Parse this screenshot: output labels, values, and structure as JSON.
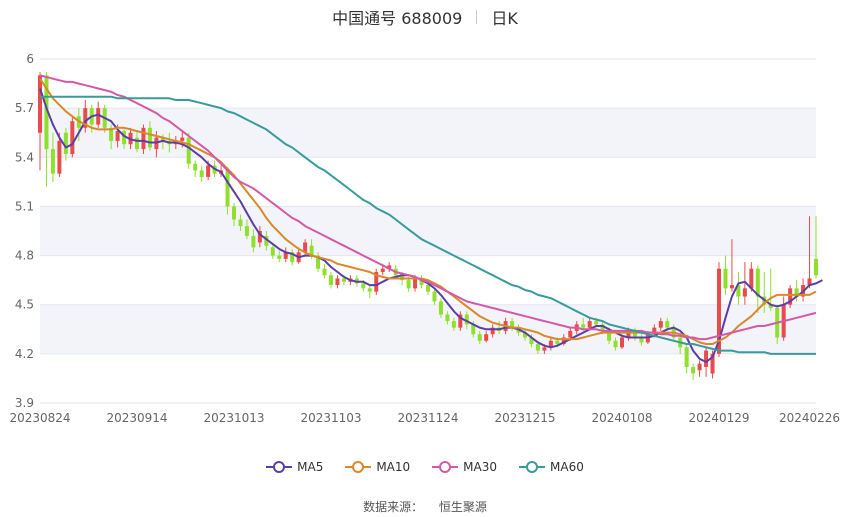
{
  "header": {
    "title": "中国通号 688009",
    "period": "日K"
  },
  "source": {
    "label": "数据来源：",
    "name": "恒生聚源"
  },
  "colors": {
    "up": "#e84b4b",
    "down": "#8ee02c",
    "MA5": "#5b3ea6",
    "MA10": "#d9882b",
    "MA30": "#d35aa6",
    "MA60": "#3a9b9b",
    "band": "#f2f4fa",
    "grid": "#e4e6ee",
    "axis_text": "#666666"
  },
  "chart_data": {
    "type": "candlestick",
    "ylim": [
      3.9,
      6.0
    ],
    "y_ticks": [
      "6",
      "5.7",
      "5.4",
      "5.1",
      "4.8",
      "4.5",
      "4.2",
      "3.9"
    ],
    "x_tick_labels": [
      "20230824",
      "20230914",
      "20231013",
      "20231103",
      "20231124",
      "20231215",
      "20240108",
      "20240129",
      "20240226"
    ],
    "x_tick_index": [
      0,
      15,
      30,
      45,
      60,
      75,
      90,
      105,
      119
    ],
    "candles": [
      [
        5.55,
        5.9,
        5.92,
        5.32
      ],
      [
        5.9,
        5.45,
        5.92,
        5.22
      ],
      [
        5.45,
        5.3,
        5.55,
        5.25
      ],
      [
        5.3,
        5.5,
        5.55,
        5.28
      ],
      [
        5.55,
        5.42,
        5.58,
        5.38
      ],
      [
        5.42,
        5.62,
        5.65,
        5.4
      ],
      [
        5.65,
        5.58,
        5.7,
        5.5
      ],
      [
        5.58,
        5.7,
        5.75,
        5.55
      ],
      [
        5.7,
        5.6,
        5.72,
        5.55
      ],
      [
        5.6,
        5.7,
        5.74,
        5.58
      ],
      [
        5.7,
        5.58,
        5.72,
        5.55
      ],
      [
        5.58,
        5.5,
        5.6,
        5.45
      ],
      [
        5.5,
        5.56,
        5.6,
        5.46
      ],
      [
        5.56,
        5.48,
        5.58,
        5.45
      ],
      [
        5.48,
        5.55,
        5.58,
        5.45
      ],
      [
        5.52,
        5.45,
        5.56,
        5.43
      ],
      [
        5.45,
        5.58,
        5.6,
        5.42
      ],
      [
        5.58,
        5.46,
        5.62,
        5.44
      ],
      [
        5.45,
        5.52,
        5.56,
        5.4
      ],
      [
        5.52,
        5.5,
        5.54,
        5.45
      ],
      [
        5.5,
        5.48,
        5.55,
        5.43
      ],
      [
        5.48,
        5.5,
        5.53,
        5.45
      ],
      [
        5.5,
        5.52,
        5.56,
        5.46
      ],
      [
        5.52,
        5.36,
        5.55,
        5.33
      ],
      [
        5.36,
        5.32,
        5.38,
        5.28
      ],
      [
        5.32,
        5.28,
        5.35,
        5.25
      ],
      [
        5.28,
        5.35,
        5.38,
        5.26
      ],
      [
        5.35,
        5.3,
        5.38,
        5.28
      ],
      [
        5.3,
        5.32,
        5.35,
        5.28
      ],
      [
        5.32,
        5.1,
        5.34,
        5.05
      ],
      [
        5.1,
        5.02,
        5.12,
        4.98
      ],
      [
        5.02,
        4.98,
        5.05,
        4.95
      ],
      [
        4.98,
        4.92,
        5.02,
        4.9
      ],
      [
        4.92,
        4.85,
        4.96,
        4.82
      ],
      [
        4.88,
        4.95,
        4.98,
        4.85
      ],
      [
        4.92,
        4.86,
        4.95,
        4.83
      ],
      [
        4.85,
        4.8,
        4.87,
        4.78
      ],
      [
        4.8,
        4.78,
        4.83,
        4.76
      ],
      [
        4.78,
        4.82,
        4.85,
        4.76
      ],
      [
        4.82,
        4.76,
        4.84,
        4.74
      ],
      [
        4.76,
        4.82,
        4.85,
        4.75
      ],
      [
        4.82,
        4.88,
        4.9,
        4.8
      ],
      [
        4.86,
        4.8,
        4.9,
        4.78
      ],
      [
        4.8,
        4.72,
        4.82,
        4.7
      ],
      [
        4.72,
        4.68,
        4.75,
        4.66
      ],
      [
        4.68,
        4.62,
        4.7,
        4.6
      ],
      [
        4.62,
        4.66,
        4.68,
        4.6
      ],
      [
        4.66,
        4.64,
        4.68,
        4.62
      ],
      [
        4.64,
        4.66,
        4.68,
        4.62
      ],
      [
        4.66,
        4.63,
        4.68,
        4.61
      ],
      [
        4.63,
        4.6,
        4.65,
        4.58
      ],
      [
        4.6,
        4.58,
        4.62,
        4.54
      ],
      [
        4.58,
        4.7,
        4.72,
        4.56
      ],
      [
        4.7,
        4.72,
        4.75,
        4.68
      ],
      [
        4.72,
        4.74,
        4.76,
        4.7
      ],
      [
        4.72,
        4.68,
        4.74,
        4.66
      ],
      [
        4.68,
        4.65,
        4.7,
        4.62
      ],
      [
        4.65,
        4.6,
        4.67,
        4.58
      ],
      [
        4.6,
        4.66,
        4.68,
        4.58
      ],
      [
        4.66,
        4.62,
        4.68,
        4.6
      ],
      [
        4.62,
        4.58,
        4.64,
        4.56
      ],
      [
        4.58,
        4.52,
        4.6,
        4.5
      ],
      [
        4.52,
        4.44,
        4.54,
        4.42
      ],
      [
        4.44,
        4.4,
        4.46,
        4.38
      ],
      [
        4.4,
        4.36,
        4.42,
        4.34
      ],
      [
        4.36,
        4.44,
        4.46,
        4.34
      ],
      [
        4.44,
        4.38,
        4.46,
        4.35
      ],
      [
        4.38,
        4.32,
        4.4,
        4.3
      ],
      [
        4.32,
        4.28,
        4.34,
        4.26
      ],
      [
        4.28,
        4.32,
        4.34,
        4.27
      ],
      [
        4.32,
        4.36,
        4.38,
        4.3
      ],
      [
        4.36,
        4.34,
        4.4,
        4.32
      ],
      [
        4.34,
        4.4,
        4.42,
        4.32
      ],
      [
        4.4,
        4.36,
        4.42,
        4.34
      ],
      [
        4.36,
        4.33,
        4.38,
        4.31
      ],
      [
        4.33,
        4.3,
        4.35,
        4.28
      ],
      [
        4.3,
        4.26,
        4.32,
        4.24
      ],
      [
        4.26,
        4.22,
        4.28,
        4.2
      ],
      [
        4.22,
        4.24,
        4.26,
        4.2
      ],
      [
        4.24,
        4.28,
        4.3,
        4.22
      ],
      [
        4.28,
        4.26,
        4.3,
        4.24
      ],
      [
        4.26,
        4.3,
        4.32,
        4.25
      ],
      [
        4.3,
        4.34,
        4.36,
        4.28
      ],
      [
        4.34,
        4.38,
        4.4,
        4.32
      ],
      [
        4.38,
        4.36,
        4.42,
        4.34
      ],
      [
        4.36,
        4.4,
        4.42,
        4.35
      ],
      [
        4.4,
        4.38,
        4.42,
        4.36
      ],
      [
        4.38,
        4.34,
        4.4,
        4.32
      ],
      [
        4.34,
        4.28,
        4.36,
        4.26
      ],
      [
        4.28,
        4.24,
        4.3,
        4.22
      ],
      [
        4.24,
        4.3,
        4.32,
        4.23
      ],
      [
        4.3,
        4.34,
        4.36,
        4.28
      ],
      [
        4.34,
        4.3,
        4.36,
        4.28
      ],
      [
        4.3,
        4.27,
        4.32,
        4.25
      ],
      [
        4.27,
        4.32,
        4.34,
        4.26
      ],
      [
        4.32,
        4.36,
        4.38,
        4.3
      ],
      [
        4.36,
        4.4,
        4.42,
        4.34
      ],
      [
        4.4,
        4.36,
        4.42,
        4.34
      ],
      [
        4.36,
        4.3,
        4.38,
        4.28
      ],
      [
        4.3,
        4.24,
        4.32,
        4.2
      ],
      [
        4.24,
        4.12,
        4.26,
        4.08
      ],
      [
        4.12,
        4.08,
        4.14,
        4.04
      ],
      [
        4.1,
        4.14,
        4.16,
        4.06
      ],
      [
        4.12,
        4.22,
        4.24,
        4.06
      ],
      [
        4.08,
        4.2,
        4.22,
        4.05
      ],
      [
        4.2,
        4.72,
        4.76,
        4.18
      ],
      [
        4.72,
        4.6,
        4.8,
        4.56
      ],
      [
        4.6,
        4.62,
        4.9,
        4.58
      ],
      [
        4.62,
        4.55,
        4.7,
        4.5
      ],
      [
        4.55,
        4.6,
        4.76,
        4.5
      ],
      [
        4.6,
        4.72,
        4.76,
        4.58
      ],
      [
        4.72,
        4.55,
        4.74,
        4.45
      ],
      [
        4.55,
        4.5,
        4.7,
        4.45
      ],
      [
        4.5,
        4.48,
        4.72,
        4.46
      ],
      [
        4.48,
        4.3,
        4.5,
        4.26
      ],
      [
        4.3,
        4.5,
        4.55,
        4.28
      ],
      [
        4.5,
        4.6,
        4.62,
        4.48
      ],
      [
        4.6,
        4.55,
        4.65,
        4.52
      ],
      [
        4.55,
        4.62,
        4.66,
        4.52
      ],
      [
        4.62,
        4.66,
        5.04,
        4.6
      ],
      [
        4.78,
        4.68,
        5.04,
        4.66
      ]
    ],
    "series": [
      {
        "name": "MA5",
        "values": [
          5.82,
          5.7,
          5.6,
          5.52,
          5.46,
          5.48,
          5.55,
          5.62,
          5.65,
          5.66,
          5.64,
          5.62,
          5.57,
          5.53,
          5.51,
          5.5,
          5.5,
          5.49,
          5.49,
          5.5,
          5.49,
          5.49,
          5.48,
          5.46,
          5.43,
          5.4,
          5.36,
          5.33,
          5.31,
          5.25,
          5.19,
          5.13,
          5.06,
          4.99,
          4.93,
          4.9,
          4.87,
          4.84,
          4.82,
          4.81,
          4.79,
          4.8,
          4.8,
          4.79,
          4.77,
          4.73,
          4.7,
          4.67,
          4.65,
          4.64,
          4.64,
          4.62,
          4.62,
          4.64,
          4.66,
          4.67,
          4.68,
          4.68,
          4.67,
          4.65,
          4.63,
          4.6,
          4.56,
          4.51,
          4.46,
          4.42,
          4.4,
          4.38,
          4.36,
          4.35,
          4.35,
          4.35,
          4.36,
          4.36,
          4.35,
          4.33,
          4.3,
          4.27,
          4.25,
          4.24,
          4.25,
          4.27,
          4.29,
          4.31,
          4.33,
          4.35,
          4.37,
          4.37,
          4.35,
          4.33,
          4.31,
          4.3,
          4.3,
          4.3,
          4.3,
          4.31,
          4.33,
          4.35,
          4.36,
          4.34,
          4.3,
          4.22,
          4.17,
          4.15,
          4.18,
          4.28,
          4.42,
          4.55,
          4.63,
          4.64,
          4.6,
          4.56,
          4.53,
          4.5,
          4.49,
          4.5,
          4.52,
          4.55,
          4.58,
          4.62,
          4.63,
          4.65
        ]
      },
      {
        "name": "MA10",
        "values": [
          5.88,
          5.82,
          5.76,
          5.72,
          5.68,
          5.65,
          5.62,
          5.6,
          5.58,
          5.57,
          5.57,
          5.57,
          5.58,
          5.58,
          5.57,
          5.56,
          5.55,
          5.54,
          5.53,
          5.52,
          5.51,
          5.5,
          5.49,
          5.48,
          5.46,
          5.44,
          5.42,
          5.4,
          5.37,
          5.33,
          5.29,
          5.24,
          5.19,
          5.14,
          5.09,
          5.03,
          4.98,
          4.94,
          4.9,
          4.87,
          4.84,
          4.82,
          4.8,
          4.79,
          4.78,
          4.77,
          4.75,
          4.74,
          4.73,
          4.72,
          4.71,
          4.7,
          4.68,
          4.67,
          4.66,
          4.66,
          4.66,
          4.66,
          4.66,
          4.66,
          4.65,
          4.63,
          4.61,
          4.58,
          4.55,
          4.52,
          4.49,
          4.46,
          4.43,
          4.41,
          4.39,
          4.38,
          4.37,
          4.36,
          4.36,
          4.35,
          4.34,
          4.33,
          4.31,
          4.3,
          4.29,
          4.29,
          4.29,
          4.29,
          4.3,
          4.31,
          4.32,
          4.33,
          4.33,
          4.33,
          4.33,
          4.33,
          4.33,
          4.33,
          4.33,
          4.33,
          4.33,
          4.33,
          4.33,
          4.32,
          4.31,
          4.29,
          4.27,
          4.26,
          4.26,
          4.28,
          4.3,
          4.33,
          4.37,
          4.4,
          4.43,
          4.47,
          4.51,
          4.54,
          4.56,
          4.56,
          4.56,
          4.56,
          4.56,
          4.56,
          4.58
        ]
      },
      {
        "name": "MA30",
        "values": [
          5.9,
          5.89,
          5.88,
          5.87,
          5.86,
          5.86,
          5.85,
          5.84,
          5.83,
          5.82,
          5.81,
          5.8,
          5.78,
          5.77,
          5.75,
          5.73,
          5.71,
          5.69,
          5.67,
          5.64,
          5.62,
          5.59,
          5.56,
          5.53,
          5.5,
          5.47,
          5.44,
          5.4,
          5.36,
          5.32,
          5.28,
          5.25,
          5.23,
          5.21,
          5.18,
          5.15,
          5.12,
          5.09,
          5.06,
          5.03,
          5.01,
          4.98,
          4.96,
          4.94,
          4.92,
          4.9,
          4.88,
          4.86,
          4.84,
          4.82,
          4.8,
          4.78,
          4.76,
          4.74,
          4.72,
          4.7,
          4.69,
          4.68,
          4.67,
          4.65,
          4.64,
          4.62,
          4.6,
          4.58,
          4.56,
          4.54,
          4.52,
          4.51,
          4.5,
          4.49,
          4.48,
          4.47,
          4.46,
          4.45,
          4.44,
          4.43,
          4.42,
          4.41,
          4.4,
          4.39,
          4.38,
          4.37,
          4.36,
          4.36,
          4.35,
          4.35,
          4.35,
          4.34,
          4.34,
          4.34,
          4.34,
          4.34,
          4.34,
          4.34,
          4.33,
          4.33,
          4.32,
          4.32,
          4.31,
          4.31,
          4.3,
          4.3,
          4.29,
          4.29,
          4.3,
          4.31,
          4.32,
          4.33,
          4.34,
          4.35,
          4.36,
          4.37,
          4.37,
          4.38,
          4.39,
          4.4,
          4.41,
          4.42,
          4.43,
          4.44,
          4.45
        ]
      },
      {
        "name": "MA60",
        "values": [
          5.77,
          5.77,
          5.77,
          5.77,
          5.77,
          5.77,
          5.77,
          5.77,
          5.77,
          5.77,
          5.77,
          5.77,
          5.76,
          5.76,
          5.76,
          5.76,
          5.76,
          5.76,
          5.76,
          5.76,
          5.76,
          5.75,
          5.75,
          5.75,
          5.74,
          5.73,
          5.72,
          5.71,
          5.7,
          5.68,
          5.67,
          5.65,
          5.63,
          5.61,
          5.59,
          5.57,
          5.54,
          5.51,
          5.48,
          5.46,
          5.43,
          5.4,
          5.37,
          5.34,
          5.32,
          5.29,
          5.26,
          5.23,
          5.2,
          5.17,
          5.14,
          5.12,
          5.09,
          5.07,
          5.05,
          5.02,
          4.99,
          4.96,
          4.93,
          4.9,
          4.88,
          4.86,
          4.84,
          4.82,
          4.8,
          4.78,
          4.76,
          4.74,
          4.72,
          4.7,
          4.68,
          4.66,
          4.64,
          4.62,
          4.61,
          4.59,
          4.58,
          4.56,
          4.55,
          4.54,
          4.52,
          4.5,
          4.48,
          4.46,
          4.44,
          4.42,
          4.41,
          4.4,
          4.38,
          4.37,
          4.36,
          4.35,
          4.34,
          4.33,
          4.32,
          4.31,
          4.3,
          4.29,
          4.28,
          4.27,
          4.26,
          4.26,
          4.25,
          4.24,
          4.23,
          4.22,
          4.22,
          4.22,
          4.21,
          4.21,
          4.21,
          4.21,
          4.21,
          4.2,
          4.2,
          4.2,
          4.2,
          4.2,
          4.2,
          4.2,
          4.2
        ]
      }
    ],
    "legend_position": "bottom",
    "grid": true
  }
}
